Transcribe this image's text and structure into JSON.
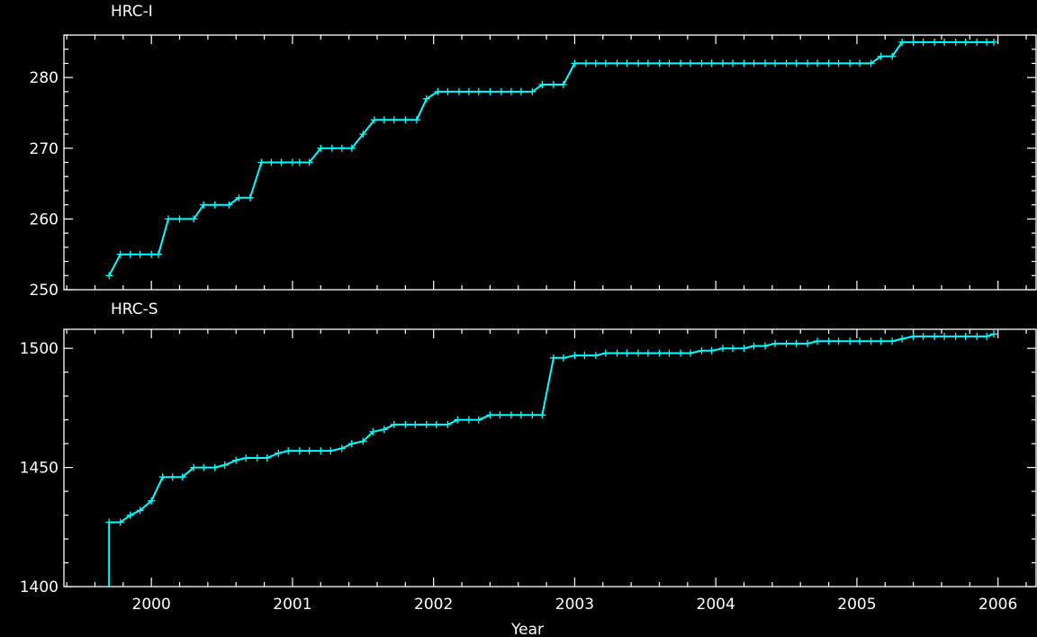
{
  "chart_data": [
    {
      "type": "line",
      "title": "HRC-I",
      "xlabel": "",
      "ylabel": "",
      "xlim": [
        1999.38,
        2006.27
      ],
      "ylim": [
        250,
        286
      ],
      "xticks": [
        "2000",
        "2001",
        "2002",
        "2003",
        "2004",
        "2005",
        "2006"
      ],
      "yticks": [
        "250",
        "260",
        "270",
        "280"
      ],
      "color": "#00ffff",
      "series": [
        {
          "x": [
            1999.7,
            1999.78,
            1999.85,
            1999.92,
            2000.0,
            2000.05,
            2000.12,
            2000.2,
            2000.3,
            2000.37,
            2000.45,
            2000.55,
            2000.62,
            2000.7,
            2000.78,
            2000.85,
            2000.92,
            2001.0,
            2001.05,
            2001.12,
            2001.2,
            2001.28,
            2001.35,
            2001.42,
            2001.5,
            2001.58,
            2001.65,
            2001.72,
            2001.8,
            2001.88,
            2001.95,
            2002.03,
            2002.1,
            2002.18,
            2002.25,
            2002.32,
            2002.4,
            2002.48,
            2002.55,
            2002.62,
            2002.7,
            2002.77,
            2002.85,
            2002.92,
            2003.0,
            2003.08,
            2003.15,
            2003.22,
            2003.3,
            2003.37,
            2003.45,
            2003.52,
            2003.6,
            2003.67,
            2003.75,
            2003.82,
            2003.9,
            2003.97,
            2004.05,
            2004.12,
            2004.2,
            2004.27,
            2004.35,
            2004.42,
            2004.5,
            2004.57,
            2004.65,
            2004.72,
            2004.8,
            2004.87,
            2004.95,
            2005.02,
            2005.1,
            2005.17,
            2005.25,
            2005.32,
            2005.4,
            2005.47,
            2005.55,
            2005.62,
            2005.7,
            2005.77,
            2005.85,
            2005.92,
            2005.97
          ],
          "y": [
            252,
            255,
            255,
            255,
            255,
            255,
            260,
            260,
            260,
            262,
            262,
            262,
            263,
            263,
            268,
            268,
            268,
            268,
            268,
            268,
            270,
            270,
            270,
            270,
            272,
            274,
            274,
            274,
            274,
            274,
            277,
            278,
            278,
            278,
            278,
            278,
            278,
            278,
            278,
            278,
            278,
            279,
            279,
            279,
            282,
            282,
            282,
            282,
            282,
            282,
            282,
            282,
            282,
            282,
            282,
            282,
            282,
            282,
            282,
            282,
            282,
            282,
            282,
            282,
            282,
            282,
            282,
            282,
            282,
            282,
            282,
            282,
            282,
            283,
            283,
            285,
            285,
            285,
            285,
            285,
            285,
            285,
            285,
            285,
            285
          ]
        }
      ]
    },
    {
      "type": "line",
      "title": "HRC-S",
      "xlabel": "Year",
      "ylabel": "",
      "xlim": [
        1999.38,
        2006.27
      ],
      "ylim": [
        1400,
        1508
      ],
      "xticks": [
        "2000",
        "2001",
        "2002",
        "2003",
        "2004",
        "2005",
        "2006"
      ],
      "yticks": [
        "1400",
        "1450",
        "1500"
      ],
      "color": "#00ffff",
      "series": [
        {
          "x": [
            1999.7,
            1999.78,
            1999.85,
            1999.92,
            2000.0,
            2000.08,
            2000.15,
            2000.22,
            2000.3,
            2000.37,
            2000.45,
            2000.52,
            2000.6,
            2000.67,
            2000.75,
            2000.82,
            2000.9,
            2000.97,
            2001.05,
            2001.12,
            2001.2,
            2001.27,
            2001.35,
            2001.42,
            2001.5,
            2001.57,
            2001.65,
            2001.72,
            2001.8,
            2001.87,
            2001.95,
            2002.02,
            2002.1,
            2002.17,
            2002.25,
            2002.32,
            2002.4,
            2002.47,
            2002.55,
            2002.62,
            2002.7,
            2002.77,
            2002.85,
            2002.92,
            2003.0,
            2003.07,
            2003.15,
            2003.22,
            2003.3,
            2003.37,
            2003.45,
            2003.52,
            2003.6,
            2003.67,
            2003.75,
            2003.82,
            2003.9,
            2003.97,
            2004.05,
            2004.12,
            2004.2,
            2004.27,
            2004.35,
            2004.42,
            2004.5,
            2004.57,
            2004.65,
            2004.72,
            2004.8,
            2004.87,
            2004.95,
            2005.02,
            2005.1,
            2005.17,
            2005.25,
            2005.32,
            2005.4,
            2005.47,
            2005.55,
            2005.62,
            2005.7,
            2005.77,
            2005.85,
            2005.92,
            2005.97
          ],
          "y": [
            1427,
            1427,
            1430,
            1432,
            1436,
            1446,
            1446,
            1446,
            1450,
            1450,
            1450,
            1451,
            1453,
            1454,
            1454,
            1454,
            1456,
            1457,
            1457,
            1457,
            1457,
            1457,
            1458,
            1460,
            1461,
            1465,
            1466,
            1468,
            1468,
            1468,
            1468,
            1468,
            1468,
            1470,
            1470,
            1470,
            1472,
            1472,
            1472,
            1472,
            1472,
            1472,
            1496,
            1496,
            1497,
            1497,
            1497,
            1498,
            1498,
            1498,
            1498,
            1498,
            1498,
            1498,
            1498,
            1498,
            1499,
            1499,
            1500,
            1500,
            1500,
            1501,
            1501,
            1502,
            1502,
            1502,
            1502,
            1503,
            1503,
            1503,
            1503,
            1503,
            1503,
            1503,
            1503,
            1504,
            1505,
            1505,
            1505,
            1505,
            1505,
            1505,
            1505,
            1505,
            1506
          ],
          "start_drop_from": 1400
        }
      ]
    }
  ]
}
